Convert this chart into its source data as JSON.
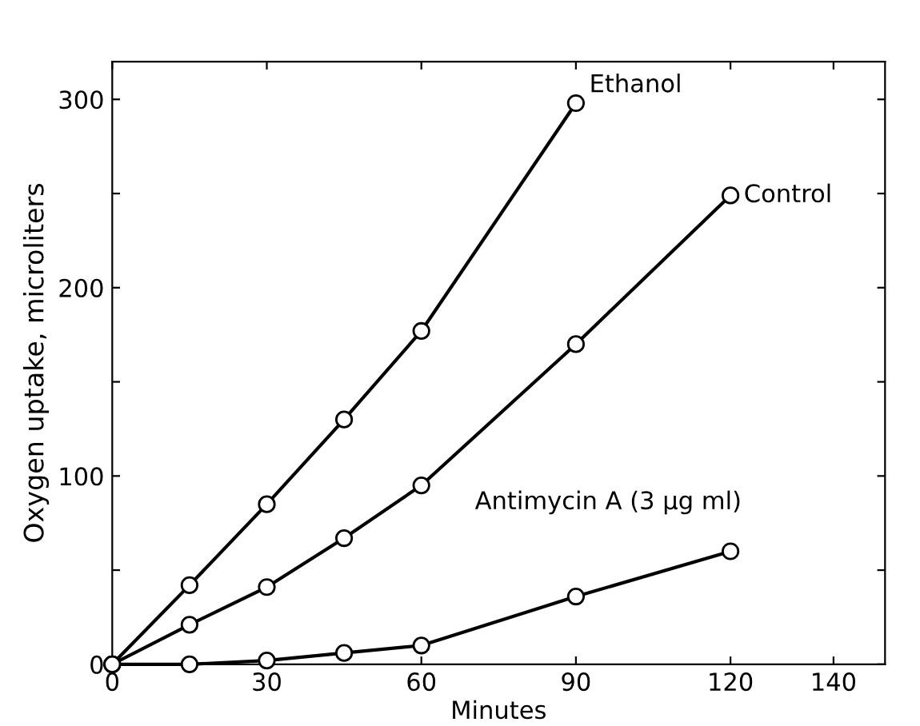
{
  "chart_data": {
    "type": "line",
    "xlabel": "Minutes",
    "ylabel": "Oxygen uptake, microliters",
    "xlim": [
      0,
      150
    ],
    "xticks": [
      0,
      30,
      60,
      90,
      120,
      140
    ],
    "ylim": [
      0,
      320
    ],
    "yticks": [
      0,
      {
        "value": 50,
        "label": null
      },
      100,
      {
        "value": 150,
        "label": null
      },
      200,
      {
        "value": 250,
        "label": null
      },
      300
    ],
    "marker": "circle",
    "line_style": "solid",
    "grid": false,
    "series": [
      {
        "name": "Ethanol",
        "color": "#000000",
        "x": [
          0,
          15,
          30,
          45,
          60,
          90
        ],
        "values": [
          0,
          42,
          85,
          130,
          177,
          298
        ]
      },
      {
        "name": "Control",
        "color": "#000000",
        "x": [
          0,
          15,
          30,
          45,
          60,
          90,
          120
        ],
        "values": [
          0,
          21,
          41,
          67,
          95,
          170,
          249
        ]
      },
      {
        "name": "Antimycin A (3 μg ml)",
        "color": "#000000",
        "x": [
          0,
          15,
          30,
          45,
          60,
          90,
          120
        ],
        "values": [
          0,
          0,
          2,
          6,
          10,
          36,
          60
        ]
      }
    ]
  }
}
